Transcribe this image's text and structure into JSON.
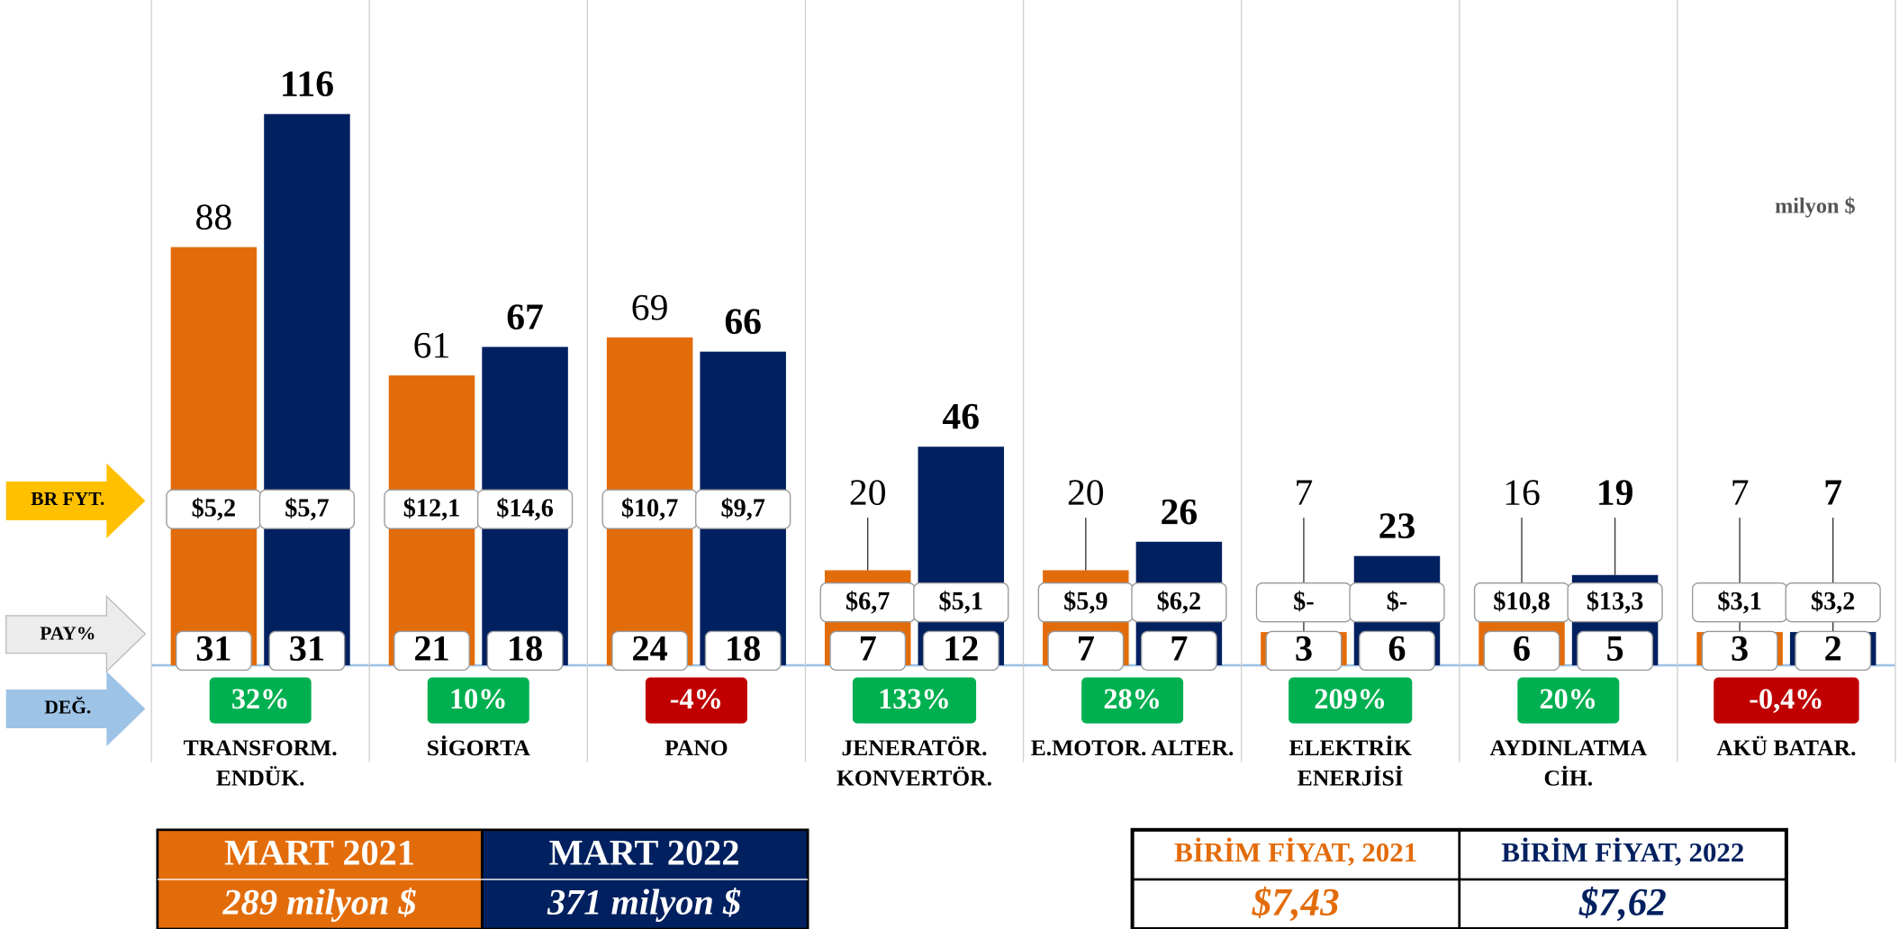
{
  "chart_data": {
    "type": "bar",
    "unit": "milyon $",
    "categories": [
      [
        "TRANSFORM.",
        "ENDÜK."
      ],
      [
        "SİGORTA"
      ],
      [
        "PANO"
      ],
      [
        "JENERATÖR.",
        "KONVERTÖR."
      ],
      [
        "E.MOTOR. ALTER."
      ],
      [
        "ELEKTRİK",
        "ENERJİSİ"
      ],
      [
        "AYDINLATMA",
        "CİH."
      ],
      [
        "AKÜ BATAR."
      ]
    ],
    "series": [
      {
        "name": "MART 2021",
        "total": "289 milyon $",
        "color": "#e36c0a",
        "values": [
          88,
          61,
          69,
          20,
          20,
          7,
          16,
          7
        ],
        "prices": [
          "$5,2",
          "$12,1",
          "$10,7",
          "$6,7",
          "$5,9",
          "$-",
          "$10,8",
          "$3,1"
        ],
        "shares": [
          31,
          21,
          24,
          7,
          7,
          3,
          6,
          3
        ]
      },
      {
        "name": "MART 2022",
        "total": "371 milyon $",
        "color": "#002060",
        "values": [
          116,
          67,
          66,
          46,
          26,
          23,
          19,
          7
        ],
        "prices": [
          "$5,7",
          "$14,6",
          "$9,7",
          "$5,1",
          "$6,2",
          "$-",
          "$13,3",
          "$3,2"
        ],
        "shares": [
          31,
          18,
          18,
          12,
          7,
          6,
          5,
          2
        ]
      }
    ],
    "change": {
      "values": [
        32,
        10,
        -4,
        133,
        28,
        209,
        20,
        -0.4
      ],
      "value_labels": [
        "32%",
        "10%",
        "-4%",
        "133%",
        "28%",
        "209%",
        "20%",
        "-0,4%"
      ],
      "colors": {
        "up": "#00b050",
        "down": "#c00000"
      }
    },
    "row_labels": {
      "price": "BR FYT.",
      "share": "PAY%",
      "change": "DEĞ."
    },
    "unit_price": {
      "headers": [
        "BİRİM FİYAT, 2021",
        "BİRİM FİYAT, 2022"
      ],
      "values": [
        "$7,43",
        "$7,62"
      ]
    },
    "ylim": [
      0,
      140
    ]
  }
}
